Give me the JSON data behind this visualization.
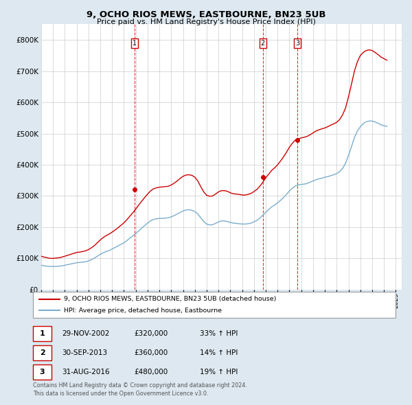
{
  "title": "9, OCHO RIOS MEWS, EASTBOURNE, BN23 5UB",
  "subtitle": "Price paid vs. HM Land Registry's House Price Index (HPI)",
  "xlim_start": 1995.0,
  "xlim_end": 2025.5,
  "ylim": [
    0,
    850000
  ],
  "yticks": [
    0,
    100000,
    200000,
    300000,
    400000,
    500000,
    600000,
    700000,
    800000
  ],
  "ytick_labels": [
    "£0",
    "£100K",
    "£200K",
    "£300K",
    "£400K",
    "£500K",
    "£600K",
    "£700K",
    "£800K"
  ],
  "sale_dates": [
    2002.92,
    2013.75,
    2016.67
  ],
  "sale_prices": [
    320000,
    360000,
    480000
  ],
  "sale_labels": [
    "1",
    "2",
    "3"
  ],
  "legend_line1": "9, OCHO RIOS MEWS, EASTBOURNE, BN23 5UB (detached house)",
  "legend_line2": "HPI: Average price, detached house, Eastbourne",
  "table_rows": [
    {
      "num": "1",
      "date": "29-NOV-2002",
      "price": "£320,000",
      "hpi": "33% ↑ HPI"
    },
    {
      "num": "2",
      "date": "30-SEP-2013",
      "price": "£360,000",
      "hpi": "14% ↑ HPI"
    },
    {
      "num": "3",
      "date": "31-AUG-2016",
      "price": "£480,000",
      "hpi": "19% ↑ HPI"
    }
  ],
  "footnote1": "Contains HM Land Registry data © Crown copyright and database right 2024.",
  "footnote2": "This data is licensed under the Open Government Licence v3.0.",
  "red_color": "#cc0000",
  "blue_color": "#7aadcc",
  "bg_color": "#dde8f0",
  "plot_bg": "#ffffff",
  "hpi_years": [
    1995.0,
    1995.25,
    1995.5,
    1995.75,
    1996.0,
    1996.25,
    1996.5,
    1996.75,
    1997.0,
    1997.25,
    1997.5,
    1997.75,
    1998.0,
    1998.25,
    1998.5,
    1998.75,
    1999.0,
    1999.25,
    1999.5,
    1999.75,
    2000.0,
    2000.25,
    2000.5,
    2000.75,
    2001.0,
    2001.25,
    2001.5,
    2001.75,
    2002.0,
    2002.25,
    2002.5,
    2002.75,
    2003.0,
    2003.25,
    2003.5,
    2003.75,
    2004.0,
    2004.25,
    2004.5,
    2004.75,
    2005.0,
    2005.25,
    2005.5,
    2005.75,
    2006.0,
    2006.25,
    2006.5,
    2006.75,
    2007.0,
    2007.25,
    2007.5,
    2007.75,
    2008.0,
    2008.25,
    2008.5,
    2008.75,
    2009.0,
    2009.25,
    2009.5,
    2009.75,
    2010.0,
    2010.25,
    2010.5,
    2010.75,
    2011.0,
    2011.25,
    2011.5,
    2011.75,
    2012.0,
    2012.25,
    2012.5,
    2012.75,
    2013.0,
    2013.25,
    2013.5,
    2013.75,
    2014.0,
    2014.25,
    2014.5,
    2014.75,
    2015.0,
    2015.25,
    2015.5,
    2015.75,
    2016.0,
    2016.25,
    2016.5,
    2016.75,
    2017.0,
    2017.25,
    2017.5,
    2017.75,
    2018.0,
    2018.25,
    2018.5,
    2018.75,
    2019.0,
    2019.25,
    2019.5,
    2019.75,
    2020.0,
    2020.25,
    2020.5,
    2020.75,
    2021.0,
    2021.25,
    2021.5,
    2021.75,
    2022.0,
    2022.25,
    2022.5,
    2022.75,
    2023.0,
    2023.25,
    2023.5,
    2023.75,
    2024.0,
    2024.25
  ],
  "hpi_values": [
    78000,
    76000,
    75000,
    74000,
    74000,
    74000,
    75000,
    76000,
    78000,
    80000,
    82000,
    84000,
    86000,
    87000,
    88000,
    89000,
    92000,
    96000,
    101000,
    107000,
    113000,
    118000,
    122000,
    125000,
    130000,
    135000,
    140000,
    145000,
    150000,
    157000,
    165000,
    172000,
    180000,
    188000,
    197000,
    205000,
    213000,
    220000,
    225000,
    227000,
    228000,
    228000,
    229000,
    230000,
    233000,
    237000,
    242000,
    247000,
    252000,
    255000,
    256000,
    254000,
    250000,
    242000,
    230000,
    218000,
    210000,
    207000,
    208000,
    212000,
    217000,
    220000,
    220000,
    218000,
    215000,
    213000,
    212000,
    211000,
    210000,
    210000,
    211000,
    213000,
    217000,
    222000,
    229000,
    238000,
    248000,
    257000,
    265000,
    271000,
    278000,
    286000,
    295000,
    305000,
    316000,
    325000,
    332000,
    335000,
    337000,
    338000,
    340000,
    344000,
    348000,
    352000,
    355000,
    357000,
    360000,
    362000,
    365000,
    368000,
    372000,
    378000,
    388000,
    405000,
    430000,
    458000,
    487000,
    508000,
    522000,
    532000,
    538000,
    540000,
    540000,
    537000,
    533000,
    528000,
    525000,
    523000
  ],
  "price_years": [
    1995.0,
    1995.25,
    1995.5,
    1995.75,
    1996.0,
    1996.25,
    1996.5,
    1996.75,
    1997.0,
    1997.25,
    1997.5,
    1997.75,
    1998.0,
    1998.25,
    1998.5,
    1998.75,
    1999.0,
    1999.25,
    1999.5,
    1999.75,
    2000.0,
    2000.25,
    2000.5,
    2000.75,
    2001.0,
    2001.25,
    2001.5,
    2001.75,
    2002.0,
    2002.25,
    2002.5,
    2002.75,
    2003.0,
    2003.25,
    2003.5,
    2003.75,
    2004.0,
    2004.25,
    2004.5,
    2004.75,
    2005.0,
    2005.25,
    2005.5,
    2005.75,
    2006.0,
    2006.25,
    2006.5,
    2006.75,
    2007.0,
    2007.25,
    2007.5,
    2007.75,
    2008.0,
    2008.25,
    2008.5,
    2008.75,
    2009.0,
    2009.25,
    2009.5,
    2009.75,
    2010.0,
    2010.25,
    2010.5,
    2010.75,
    2011.0,
    2011.25,
    2011.5,
    2011.75,
    2012.0,
    2012.25,
    2012.5,
    2012.75,
    2013.0,
    2013.25,
    2013.5,
    2013.75,
    2014.0,
    2014.25,
    2014.5,
    2014.75,
    2015.0,
    2015.25,
    2015.5,
    2015.75,
    2016.0,
    2016.25,
    2016.5,
    2016.75,
    2017.0,
    2017.25,
    2017.5,
    2017.75,
    2018.0,
    2018.25,
    2018.5,
    2018.75,
    2019.0,
    2019.25,
    2019.5,
    2019.75,
    2020.0,
    2020.25,
    2020.5,
    2020.75,
    2021.0,
    2021.25,
    2021.5,
    2021.75,
    2022.0,
    2022.25,
    2022.5,
    2022.75,
    2023.0,
    2023.25,
    2023.5,
    2023.75,
    2024.0,
    2024.25
  ],
  "price_line_values": [
    107000,
    104000,
    102000,
    100000,
    100000,
    101000,
    102000,
    104000,
    107000,
    110000,
    113000,
    116000,
    119000,
    120000,
    122000,
    124000,
    128000,
    134000,
    141000,
    150000,
    159000,
    167000,
    173000,
    178000,
    184000,
    191000,
    198000,
    206000,
    214000,
    224000,
    235000,
    246000,
    258000,
    271000,
    283000,
    295000,
    306000,
    316000,
    323000,
    326000,
    328000,
    329000,
    330000,
    331000,
    335000,
    341000,
    348000,
    356000,
    363000,
    367000,
    368000,
    366000,
    360000,
    348000,
    330000,
    313000,
    302000,
    299000,
    300000,
    306000,
    313000,
    317000,
    317000,
    315000,
    310000,
    307000,
    306000,
    305000,
    303000,
    303000,
    305000,
    308000,
    314000,
    321000,
    331000,
    344000,
    358000,
    370000,
    382000,
    390000,
    400000,
    412000,
    425000,
    440000,
    456000,
    469000,
    479000,
    483000,
    486000,
    488000,
    491000,
    496000,
    502000,
    508000,
    512000,
    515000,
    518000,
    522000,
    527000,
    531000,
    536000,
    545000,
    560000,
    582000,
    618000,
    658000,
    700000,
    730000,
    750000,
    760000,
    766000,
    768000,
    766000,
    760000,
    753000,
    745000,
    740000,
    735000
  ]
}
